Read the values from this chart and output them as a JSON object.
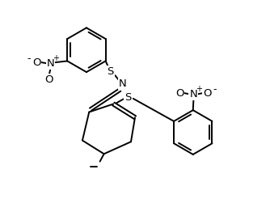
{
  "background": "#ffffff",
  "line_color": "#000000",
  "line_width": 1.4,
  "font_size": 9.5,
  "figsize": [
    3.34,
    2.67
  ],
  "dpi": 100,
  "xlim": [
    0,
    10
  ],
  "ylim": [
    0,
    8
  ]
}
